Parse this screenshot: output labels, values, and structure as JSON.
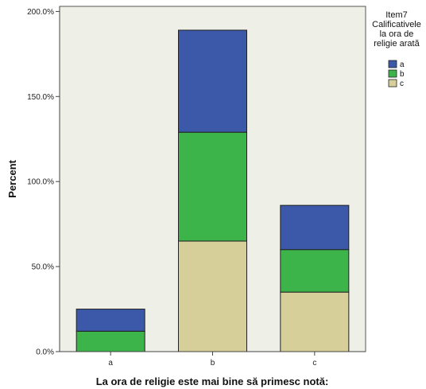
{
  "chart_data": {
    "type": "bar",
    "stacked": true,
    "categories": [
      "a",
      "b",
      "c"
    ],
    "series": [
      {
        "name": "c",
        "color": "#d6cf99",
        "values": [
          0,
          65,
          35
        ]
      },
      {
        "name": "b",
        "color": "#3cb44a",
        "values": [
          12,
          64,
          25
        ]
      },
      {
        "name": "a",
        "color": "#3c58a8",
        "values": [
          13,
          60,
          26
        ]
      }
    ],
    "xlabel": "La ora de religie este mai bine să primesc notă:",
    "ylabel": "Percent",
    "ylim": [
      0,
      200
    ],
    "yticks": [
      0,
      50,
      100,
      150,
      200
    ],
    "ytick_labels": [
      "0.0%",
      "50.0%",
      "100.0%",
      "150.0%",
      "200.0%"
    ],
    "plot_background": "#eeefe6",
    "grid": false,
    "legend": {
      "position": "right",
      "title_lines": [
        "Item7",
        "Calificativele",
        "la ora de",
        "religie arată"
      ],
      "entries": [
        "a",
        "b",
        "c"
      ]
    }
  }
}
